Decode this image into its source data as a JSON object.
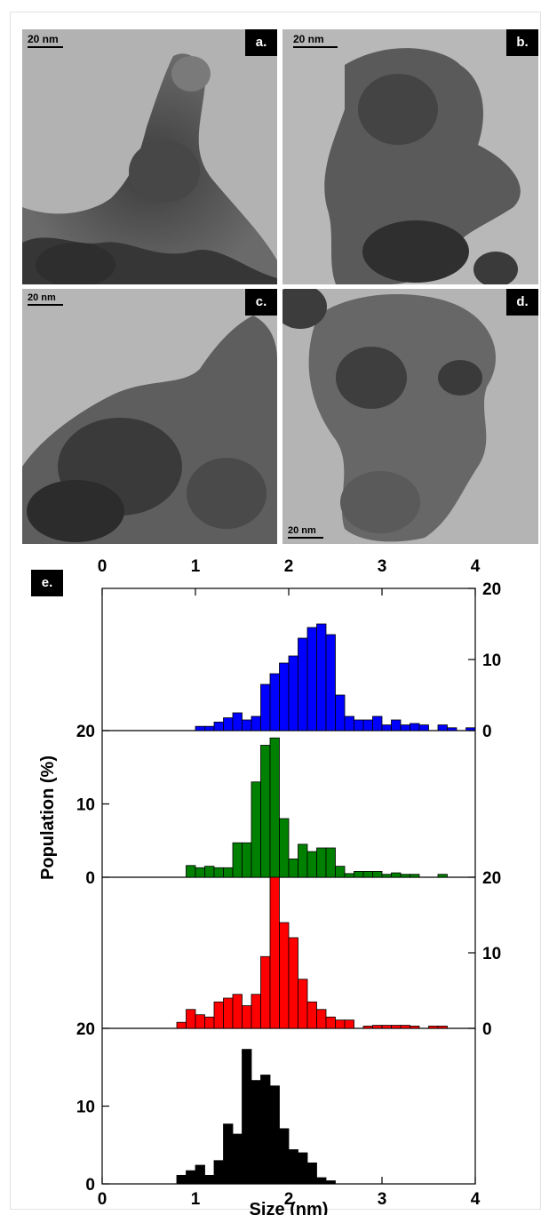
{
  "panels": [
    {
      "id": "a",
      "label": "a.",
      "scale": "20 nm"
    },
    {
      "id": "b",
      "label": "b.",
      "scale": "20 nm"
    },
    {
      "id": "c",
      "label": "c.",
      "scale": "20 nm"
    },
    {
      "id": "d",
      "label": "d.",
      "scale": "20 nm"
    }
  ],
  "chart_data": {
    "type": "bar",
    "panel_label": "e.",
    "xlabel": "Size (nm)",
    "ylabel": "Population (%)",
    "xlim": [
      0,
      4
    ],
    "xticks": [
      "0",
      "1",
      "2",
      "3",
      "4"
    ],
    "ylim": [
      0,
      20
    ],
    "bin_width": 0.1,
    "stacked_panels": [
      {
        "color": "#0000ff",
        "yaxis": "right",
        "yticks": [
          "0",
          "10",
          "20"
        ],
        "bins": [
          [
            1.0,
            0.6
          ],
          [
            1.1,
            0.6
          ],
          [
            1.2,
            1.2
          ],
          [
            1.3,
            1.8
          ],
          [
            1.4,
            2.5
          ],
          [
            1.5,
            1.5
          ],
          [
            1.6,
            2.0
          ],
          [
            1.7,
            6.5
          ],
          [
            1.8,
            8.0
          ],
          [
            1.9,
            9.5
          ],
          [
            2.0,
            10.5
          ],
          [
            2.1,
            13.0
          ],
          [
            2.2,
            14.5
          ],
          [
            2.3,
            15.0
          ],
          [
            2.4,
            13.5
          ],
          [
            2.5,
            5.0
          ],
          [
            2.6,
            2.0
          ],
          [
            2.7,
            1.5
          ],
          [
            2.8,
            1.5
          ],
          [
            2.9,
            2.0
          ],
          [
            3.0,
            0.8
          ],
          [
            3.1,
            1.5
          ],
          [
            3.2,
            0.8
          ],
          [
            3.3,
            1.0
          ],
          [
            3.4,
            0.8
          ],
          [
            3.6,
            0.8
          ],
          [
            3.7,
            0.4
          ],
          [
            3.9,
            0.4
          ]
        ]
      },
      {
        "color": "#008000",
        "yaxis": "left",
        "yticks": [
          "0",
          "10",
          "20"
        ],
        "bins": [
          [
            0.9,
            1.6
          ],
          [
            1.0,
            1.3
          ],
          [
            1.1,
            1.5
          ],
          [
            1.2,
            1.3
          ],
          [
            1.3,
            1.3
          ],
          [
            1.4,
            4.7
          ],
          [
            1.5,
            4.7
          ],
          [
            1.6,
            13.0
          ],
          [
            1.7,
            18.0
          ],
          [
            1.8,
            19.0
          ],
          [
            1.9,
            8.0
          ],
          [
            2.0,
            2.5
          ],
          [
            2.1,
            4.5
          ],
          [
            2.2,
            3.5
          ],
          [
            2.3,
            4.0
          ],
          [
            2.4,
            4.0
          ],
          [
            2.5,
            1.5
          ],
          [
            2.6,
            0.5
          ],
          [
            2.7,
            0.8
          ],
          [
            2.8,
            0.8
          ],
          [
            2.9,
            0.8
          ],
          [
            3.0,
            0.4
          ],
          [
            3.1,
            0.6
          ],
          [
            3.2,
            0.4
          ],
          [
            3.3,
            0.4
          ],
          [
            3.6,
            0.4
          ]
        ]
      },
      {
        "color": "#ff0000",
        "yaxis": "right",
        "yticks": [
          "0",
          "10",
          "20"
        ],
        "bins": [
          [
            0.8,
            0.8
          ],
          [
            0.9,
            2.5
          ],
          [
            1.0,
            1.8
          ],
          [
            1.1,
            1.5
          ],
          [
            1.2,
            3.5
          ],
          [
            1.3,
            4.0
          ],
          [
            1.4,
            4.5
          ],
          [
            1.5,
            3.0
          ],
          [
            1.6,
            4.5
          ],
          [
            1.7,
            9.5
          ],
          [
            1.8,
            20.0
          ],
          [
            1.9,
            14.0
          ],
          [
            2.0,
            12.0
          ],
          [
            2.1,
            6.5
          ],
          [
            2.2,
            3.5
          ],
          [
            2.3,
            2.5
          ],
          [
            2.4,
            1.5
          ],
          [
            2.5,
            1.1
          ],
          [
            2.6,
            1.1
          ],
          [
            2.8,
            0.3
          ],
          [
            2.9,
            0.4
          ],
          [
            3.0,
            0.4
          ],
          [
            3.1,
            0.4
          ],
          [
            3.2,
            0.4
          ],
          [
            3.3,
            0.3
          ],
          [
            3.5,
            0.3
          ],
          [
            3.6,
            0.3
          ]
        ]
      },
      {
        "color": "#000000",
        "yaxis": "left",
        "yticks": [
          "0",
          "10",
          "20"
        ],
        "bins": [
          [
            0.8,
            1.1
          ],
          [
            0.9,
            1.7
          ],
          [
            1.0,
            2.4
          ],
          [
            1.1,
            1.1
          ],
          [
            1.2,
            3.0
          ],
          [
            1.3,
            7.7
          ],
          [
            1.4,
            6.4
          ],
          [
            1.5,
            17.3
          ],
          [
            1.6,
            13.3
          ],
          [
            1.7,
            14.0
          ],
          [
            1.8,
            12.6
          ],
          [
            1.9,
            7.1
          ],
          [
            2.0,
            4.4
          ],
          [
            2.1,
            4.0
          ],
          [
            2.2,
            2.7
          ],
          [
            2.3,
            0.8
          ],
          [
            2.4,
            0.4
          ]
        ]
      }
    ]
  }
}
